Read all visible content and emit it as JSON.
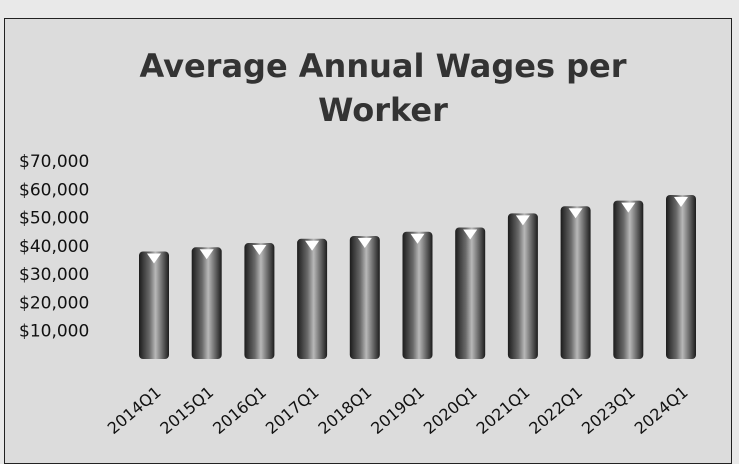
{
  "chart_data": {
    "type": "bar",
    "title_lines": [
      "Average Annual Wages per",
      "Worker"
    ],
    "categories": [
      "2014Q1",
      "2015Q1",
      "2016Q1",
      "2017Q1",
      "2018Q1",
      "2019Q1",
      "2020Q1",
      "2021Q1",
      "2022Q1",
      "2023Q1",
      "2024Q1"
    ],
    "values": [
      38000,
      39500,
      41000,
      42500,
      43500,
      45000,
      46500,
      51500,
      54000,
      56000,
      58000
    ],
    "y_ticks": [
      "$10,000",
      "$20,000",
      "$30,000",
      "$40,000",
      "$50,000",
      "$60,000",
      "$70,000"
    ],
    "y_tick_values": [
      10000,
      20000,
      30000,
      40000,
      50000,
      60000,
      70000
    ],
    "ylim": [
      0,
      70000
    ],
    "xlabel": "",
    "ylabel": "",
    "grid": false,
    "legend": "none",
    "colors": {
      "bar_dark": "#1c1c1c",
      "bar_mid": "#6a6a6a",
      "bar_light": "#b8b8b8",
      "marker": "#ffffff",
      "background": "#dcdcdc"
    }
  }
}
